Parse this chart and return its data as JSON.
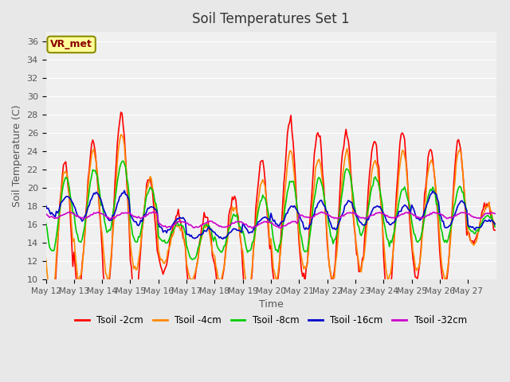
{
  "title": "Soil Temperatures Set 1",
  "xlabel": "Time",
  "ylabel": "Soil Temperature (C)",
  "ylim": [
    10,
    37
  ],
  "yticks": [
    10,
    12,
    14,
    16,
    18,
    20,
    22,
    24,
    26,
    28,
    30,
    32,
    34,
    36
  ],
  "bg_color": "#e8e8e8",
  "plot_bg": "#f0f0f0",
  "annotation_text": "VR_met",
  "annotation_bg": "#ffff99",
  "annotation_border": "#8B8B00",
  "annotation_text_color": "#8B0000",
  "series_colors": [
    "#ff0000",
    "#ff8800",
    "#00cc00",
    "#0000cc",
    "#cc00cc"
  ],
  "series_labels": [
    "Tsoil -2cm",
    "Tsoil -4cm",
    "Tsoil -8cm",
    "Tsoil -16cm",
    "Tsoil -32cm"
  ],
  "x_tick_positions": [
    0,
    1,
    2,
    3,
    4,
    5,
    6,
    7,
    8,
    9,
    10,
    11,
    12,
    13,
    14,
    15
  ],
  "x_tick_labels": [
    "May 12",
    "May 13",
    "May 14",
    "May 15",
    "May 16",
    "May 17",
    "May 18",
    "May 19",
    "May 20",
    "May 21",
    "May 22",
    "May 23",
    "May 24",
    "May 25",
    "May 26",
    "May 27"
  ],
  "n_days": 16,
  "pts_per_day": 24,
  "base_2cm": [
    14,
    17,
    18,
    15,
    14,
    13,
    14,
    15,
    18,
    18,
    18,
    18,
    17,
    17,
    17,
    16
  ],
  "base_4cm": [
    15,
    17,
    18,
    16,
    14,
    13,
    14,
    15,
    17,
    17,
    17,
    17,
    17,
    17,
    17,
    16
  ],
  "base_8cm": [
    17,
    18,
    19,
    17,
    15,
    14,
    15,
    16,
    17,
    17,
    18,
    18,
    17,
    17,
    17,
    16
  ],
  "base_16cm": [
    18,
    18,
    18,
    17,
    16,
    15,
    15,
    16,
    17,
    17,
    17,
    17,
    17,
    18,
    17,
    16
  ],
  "base_32cm": [
    17,
    17,
    17,
    17,
    16,
    16,
    16,
    16,
    16,
    17,
    17,
    17,
    17,
    17,
    17,
    17
  ],
  "amp_2cm": [
    9,
    8,
    10,
    6,
    3,
    4,
    5,
    8,
    9,
    8,
    8,
    7,
    9,
    7,
    8,
    2
  ],
  "amp_4cm": [
    7,
    7,
    8,
    5,
    2,
    3,
    4,
    6,
    7,
    6,
    7,
    6,
    7,
    6,
    7,
    2
  ],
  "amp_8cm": [
    4,
    4,
    4,
    3,
    1,
    2,
    2,
    3,
    4,
    4,
    4,
    3,
    3,
    3,
    3,
    1
  ],
  "amp_16cm": [
    1,
    1.5,
    1.5,
    1,
    0.8,
    0.5,
    0.5,
    0.8,
    1,
    1.5,
    1.5,
    1,
    1,
    1.5,
    1.5,
    0.5
  ],
  "amp_32cm": [
    0.3,
    0.3,
    0.3,
    0.3,
    0.3,
    0.3,
    0.3,
    0.3,
    0.3,
    0.3,
    0.3,
    0.3,
    0.3,
    0.3,
    0.3,
    0.3
  ]
}
